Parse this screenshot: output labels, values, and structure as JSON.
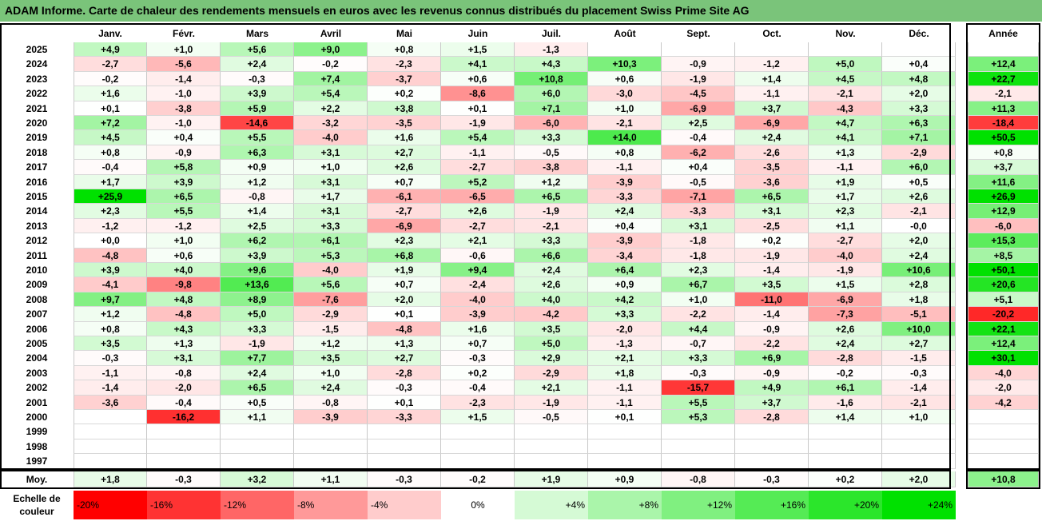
{
  "title": "ADAM Informe. Carte de chaleur des rendements mensuels en euros avec les revenus connus distribués du placement Swiss Prime Site AG",
  "chart_data": {
    "type": "heatmap",
    "columns": [
      "Janv.",
      "Févr.",
      "Mars",
      "Avril",
      "Mai",
      "Juin",
      "Juil.",
      "Août",
      "Sept.",
      "Oct.",
      "Nov.",
      "Déc."
    ],
    "annual_header": "Année",
    "rows": [
      {
        "year": "2025",
        "values": [
          "+4,9",
          "+1,0",
          "+5,6",
          "+9,0",
          "+0,8",
          "+1,5",
          "-1,3",
          "",
          "",
          "",
          "",
          ""
        ],
        "annual": ""
      },
      {
        "year": "2024",
        "values": [
          "-2,7",
          "-5,6",
          "+2,4",
          "-0,2",
          "-2,3",
          "+4,1",
          "+4,3",
          "+10,3",
          "-0,9",
          "-1,2",
          "+5,0",
          "+0,4"
        ],
        "annual": "+12,4"
      },
      {
        "year": "2023",
        "values": [
          "-0,2",
          "-1,4",
          "-0,3",
          "+7,4",
          "-3,7",
          "+0,6",
          "+10,8",
          "+0,6",
          "-1,9",
          "+1,4",
          "+4,5",
          "+4,8"
        ],
        "annual": "+22,7"
      },
      {
        "year": "2022",
        "values": [
          "+1,6",
          "-1,0",
          "+3,9",
          "+5,4",
          "+0,2",
          "-8,6",
          "+6,0",
          "-3,0",
          "-4,5",
          "-1,1",
          "-2,1",
          "+2,0"
        ],
        "annual": "-2,1"
      },
      {
        "year": "2021",
        "values": [
          "+0,1",
          "-3,8",
          "+5,9",
          "+2,2",
          "+3,8",
          "+0,1",
          "+7,1",
          "+1,0",
          "-6,9",
          "+3,7",
          "-4,3",
          "+3,3"
        ],
        "annual": "+11,3"
      },
      {
        "year": "2020",
        "values": [
          "+7,2",
          "-1,0",
          "-14,6",
          "-3,2",
          "-3,5",
          "-1,9",
          "-6,0",
          "-2,1",
          "+2,5",
          "-6,9",
          "+4,7",
          "+6,3"
        ],
        "annual": "-18,4"
      },
      {
        "year": "2019",
        "values": [
          "+4,5",
          "+0,4",
          "+5,5",
          "-4,0",
          "+1,6",
          "+5,4",
          "+3,3",
          "+14,0",
          "-0,4",
          "+2,4",
          "+4,1",
          "+7,1"
        ],
        "annual": "+50,5"
      },
      {
        "year": "2018",
        "values": [
          "+0,8",
          "-0,9",
          "+6,3",
          "+3,1",
          "+2,7",
          "-1,1",
          "-0,5",
          "+0,8",
          "-6,2",
          "-2,6",
          "+1,3",
          "-2,9"
        ],
        "annual": "+0,8"
      },
      {
        "year": "2017",
        "values": [
          "-0,4",
          "+5,8",
          "+0,9",
          "+1,0",
          "+2,6",
          "-2,7",
          "-3,8",
          "-1,1",
          "+0,4",
          "-3,5",
          "-1,1",
          "+6,0"
        ],
        "annual": "+3,7"
      },
      {
        "year": "2016",
        "values": [
          "+1,7",
          "+3,9",
          "+1,2",
          "+3,1",
          "+0,7",
          "+5,2",
          "+1,2",
          "-3,9",
          "-0,5",
          "-3,6",
          "+1,9",
          "+0,5"
        ],
        "annual": "+11,6"
      },
      {
        "year": "2015",
        "values": [
          "+25,9",
          "+6,5",
          "-0,8",
          "+1,7",
          "-6,1",
          "-6,5",
          "+6,5",
          "-3,3",
          "-7,1",
          "+6,5",
          "+1,7",
          "+2,6"
        ],
        "annual": "+26,9"
      },
      {
        "year": "2014",
        "values": [
          "+2,3",
          "+5,5",
          "+1,4",
          "+3,1",
          "-2,7",
          "+2,6",
          "-1,9",
          "+2,4",
          "-3,3",
          "+3,1",
          "+2,3",
          "-2,1"
        ],
        "annual": "+12,9"
      },
      {
        "year": "2013",
        "values": [
          "-1,2",
          "-1,2",
          "+2,5",
          "+3,3",
          "-6,9",
          "-2,7",
          "-2,1",
          "+0,4",
          "+3,1",
          "-2,5",
          "+1,1",
          "-0,0"
        ],
        "annual": "-6,0"
      },
      {
        "year": "2012",
        "values": [
          "+0,0",
          "+1,0",
          "+6,2",
          "+6,1",
          "+2,3",
          "+2,1",
          "+3,3",
          "-3,9",
          "-1,8",
          "+0,2",
          "-2,7",
          "+2,0"
        ],
        "annual": "+15,3"
      },
      {
        "year": "2011",
        "values": [
          "-4,8",
          "+0,6",
          "+3,9",
          "+5,3",
          "+6,8",
          "-0,6",
          "+6,6",
          "-3,4",
          "-1,8",
          "-1,9",
          "-4,0",
          "+2,4"
        ],
        "annual": "+8,5"
      },
      {
        "year": "2010",
        "values": [
          "+3,9",
          "+4,0",
          "+9,6",
          "-4,0",
          "+1,9",
          "+9,4",
          "+2,4",
          "+6,4",
          "+2,3",
          "-1,4",
          "-1,9",
          "+10,6"
        ],
        "annual": "+50,1"
      },
      {
        "year": "2009",
        "values": [
          "-4,1",
          "-9,8",
          "+13,6",
          "+5,6",
          "+0,7",
          "-2,4",
          "+2,6",
          "+0,9",
          "+6,7",
          "+3,5",
          "+1,5",
          "+2,8"
        ],
        "annual": "+20,6"
      },
      {
        "year": "2008",
        "values": [
          "+9,7",
          "+4,8",
          "+8,9",
          "-7,6",
          "+2,0",
          "-4,0",
          "+4,0",
          "+4,2",
          "+1,0",
          "-11,0",
          "-6,9",
          "+1,8"
        ],
        "annual": "+5,1"
      },
      {
        "year": "2007",
        "values": [
          "+1,2",
          "-4,8",
          "+5,0",
          "-2,9",
          "+0,1",
          "-3,9",
          "-4,2",
          "+3,3",
          "-2,2",
          "-1,4",
          "-7,3",
          "-5,1"
        ],
        "annual": "-20,2"
      },
      {
        "year": "2006",
        "values": [
          "+0,8",
          "+4,3",
          "+3,3",
          "-1,5",
          "-4,8",
          "+1,6",
          "+3,5",
          "-2,0",
          "+4,4",
          "-0,9",
          "+2,6",
          "+10,0"
        ],
        "annual": "+22,1"
      },
      {
        "year": "2005",
        "values": [
          "+3,5",
          "+1,3",
          "-1,9",
          "+1,2",
          "+1,3",
          "+0,7",
          "+5,0",
          "-1,3",
          "-0,7",
          "-2,2",
          "+2,4",
          "+2,7"
        ],
        "annual": "+12,4"
      },
      {
        "year": "2004",
        "values": [
          "-0,3",
          "+3,1",
          "+7,7",
          "+3,5",
          "+2,7",
          "-0,3",
          "+2,9",
          "+2,1",
          "+3,3",
          "+6,9",
          "-2,8",
          "-1,5"
        ],
        "annual": "+30,1"
      },
      {
        "year": "2003",
        "values": [
          "-1,1",
          "-0,8",
          "+2,4",
          "+1,0",
          "-2,8",
          "+0,2",
          "-2,9",
          "+1,8",
          "-0,3",
          "-0,9",
          "-0,2",
          "-0,3"
        ],
        "annual": "-4,0"
      },
      {
        "year": "2002",
        "values": [
          "-1,4",
          "-2,0",
          "+6,5",
          "+2,4",
          "-0,3",
          "-0,4",
          "+2,1",
          "-1,1",
          "-15,7",
          "+4,9",
          "+6,1",
          "-1,4"
        ],
        "annual": "-2,0"
      },
      {
        "year": "2001",
        "values": [
          "-3,6",
          "-0,4",
          "+0,5",
          "-0,8",
          "+0,1",
          "-2,3",
          "-1,9",
          "-1,1",
          "+5,5",
          "+3,7",
          "-1,6",
          "-2,1"
        ],
        "annual": "-4,2"
      },
      {
        "year": "2000",
        "values": [
          "",
          "-16,2",
          "+1,1",
          "-3,9",
          "-3,3",
          "+1,5",
          "-0,5",
          "+0,1",
          "+5,3",
          "-2,8",
          "+1,4",
          "+1,0"
        ],
        "annual": ""
      },
      {
        "year": "1999",
        "values": [
          "",
          "",
          "",
          "",
          "",
          "",
          "",
          "",
          "",
          "",
          "",
          ""
        ],
        "annual": ""
      },
      {
        "year": "1998",
        "values": [
          "",
          "",
          "",
          "",
          "",
          "",
          "",
          "",
          "",
          "",
          "",
          ""
        ],
        "annual": ""
      },
      {
        "year": "1997",
        "values": [
          "",
          "",
          "",
          "",
          "",
          "",
          "",
          "",
          "",
          "",
          "",
          ""
        ],
        "annual": ""
      }
    ],
    "average": {
      "label": "Moy.",
      "values": [
        "+1,8",
        "-0,3",
        "+3,2",
        "+1,1",
        "-0,3",
        "-0,2",
        "+1,9",
        "+0,9",
        "-0,8",
        "-0,3",
        "+0,2",
        "+2,0"
      ],
      "annual": "+10,8"
    },
    "scale": {
      "label_line1": "Echelle de",
      "label_line2": "couleur",
      "stops": [
        "-20%",
        "-16%",
        "-12%",
        "-8%",
        "-4%",
        "0%",
        "+4%",
        "+8%",
        "+12%",
        "+16%",
        "+20%",
        "+24%"
      ]
    },
    "colors": {
      "negative": "#ff0000",
      "positive": "#00e000",
      "neutral": "#ffffff",
      "title_bar": "#7ac47a"
    }
  }
}
